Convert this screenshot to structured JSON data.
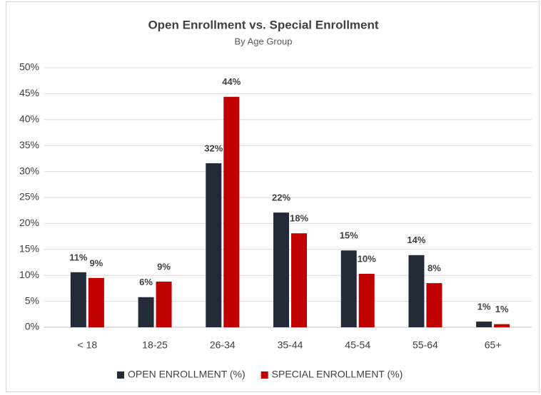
{
  "chart_data": {
    "type": "bar",
    "title": "Open Enrollment vs. Special Enrollment",
    "subtitle": "By Age Group",
    "categories": [
      "< 18",
      "18-25",
      "26-34",
      "35-44",
      "45-54",
      "55-64",
      "65+"
    ],
    "series": [
      {
        "name": "OPEN ENROLLMENT (%)",
        "color": "#232b38",
        "values": [
          10.6,
          5.8,
          31.6,
          22.1,
          14.8,
          13.9,
          1.1
        ],
        "value_labels": [
          "11%",
          "6%",
          "32%",
          "22%",
          "15%",
          "14%",
          "1%"
        ]
      },
      {
        "name": "SPECIAL ENROLLMENT (%)",
        "color": "#c00000",
        "values": [
          9.5,
          8.8,
          44.4,
          18.1,
          10.3,
          8.5,
          0.6
        ],
        "value_labels": [
          "9%",
          "9%",
          "44%",
          "18%",
          "10%",
          "8%",
          "1%"
        ]
      }
    ],
    "ylim": [
      0,
      50
    ],
    "yticks": [
      {
        "value": 0,
        "label": "0%"
      },
      {
        "value": 5,
        "label": "5%"
      },
      {
        "value": 10,
        "label": "10%"
      },
      {
        "value": 15,
        "label": "15%"
      },
      {
        "value": 20,
        "label": "20%"
      },
      {
        "value": 25,
        "label": "25%"
      },
      {
        "value": 30,
        "label": "30%"
      },
      {
        "value": 35,
        "label": "35%"
      },
      {
        "value": 40,
        "label": "40%"
      },
      {
        "value": 45,
        "label": "45%"
      },
      {
        "value": 50,
        "label": "50%"
      }
    ],
    "grid": true,
    "legend": "bottom"
  }
}
